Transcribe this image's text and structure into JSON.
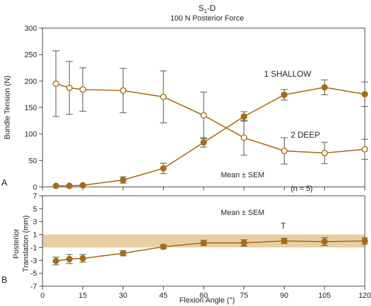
{
  "colors": {
    "series": "#a86b14",
    "band": "#e7cfa3",
    "axis": "#444444",
    "errorbar": "#555555",
    "text": "#222222"
  },
  "chart_data": [
    {
      "type": "line",
      "panel_label": "A",
      "title": {
        "main": "S",
        "sub": "1",
        "suffix": "-D"
      },
      "subtitle": "100 N Posterior Force",
      "ylabel": "Bundle Tension (N)",
      "xlabel": "",
      "xlim": [
        0,
        120
      ],
      "ylim": [
        0,
        300
      ],
      "xticks": [
        0,
        15,
        30,
        45,
        60,
        75,
        90,
        105,
        120
      ],
      "yticks": [
        0,
        50,
        100,
        150,
        200,
        250,
        300
      ],
      "grid": false,
      "series": [
        {
          "name": "1 SHALLOW",
          "marker": "filled-circle",
          "x": [
            5,
            10,
            15,
            30,
            45,
            60,
            75,
            90,
            105,
            120
          ],
          "y": [
            2,
            2,
            3,
            13,
            35,
            84,
            133,
            174,
            188,
            175
          ],
          "error": [
            0,
            0,
            0,
            6,
            10,
            9,
            9,
            10,
            14,
            23
          ]
        },
        {
          "name": "2 DEEP",
          "marker": "open-circle",
          "x": [
            5,
            10,
            15,
            30,
            45,
            60,
            75,
            90,
            105,
            120
          ],
          "y": [
            195,
            187,
            184,
            182,
            170,
            135,
            93,
            68,
            64,
            71
          ],
          "error": [
            62,
            50,
            41,
            42,
            49,
            44,
            33,
            25,
            20,
            19
          ]
        }
      ],
      "annotations": {
        "series1_label": "1 SHALLOW",
        "series2_label": "2 DEEP",
        "stat_label": "Mean ± SEM",
        "n_label": "(n = 5)"
      }
    },
    {
      "type": "line",
      "panel_label": "B",
      "ylabel_line1": "Posterior",
      "ylabel_line2": "Translation (mm)",
      "xlabel": "Flexion Angle (°)",
      "xlim": [
        0,
        120
      ],
      "ylim": [
        -7,
        7
      ],
      "xticks": [
        0,
        15,
        30,
        45,
        60,
        75,
        90,
        105,
        120
      ],
      "yticks": [
        -7,
        -5,
        -3,
        -1,
        1,
        3,
        5,
        7
      ],
      "grid": false,
      "band": [
        -1,
        1
      ],
      "series": [
        {
          "name": "",
          "marker": "filled-circle",
          "x": [
            5,
            10,
            15,
            30,
            45,
            60,
            75,
            90,
            105,
            120
          ],
          "y": [
            -3.1,
            -2.8,
            -2.7,
            -1.9,
            -0.9,
            -0.3,
            -0.3,
            0.0,
            -0.1,
            0.0
          ],
          "error": [
            0.6,
            0.7,
            0.6,
            0.4,
            0.3,
            0.4,
            0.5,
            0.4,
            0.6,
            0.5
          ]
        }
      ],
      "annotations": {
        "stat_label": "Mean ± SEM",
        "marker_label": "T",
        "marker_x": 90
      }
    }
  ]
}
